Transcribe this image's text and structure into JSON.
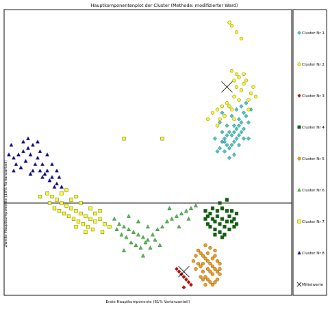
{
  "chart_data": {
    "type": "scatter",
    "title": "Hauptkomponentenplot der Cluster (Methode: modifizierter Ward)",
    "xlabel": "Erste Hauptkomponente (61% Varianzanteil)",
    "ylabel": "Zweite Hauptkomponente (19% Varianzanteil)",
    "axes_units": "principal component scores (no tick labels shown)",
    "xlim": [
      -5,
      7
    ],
    "ylim": [
      -3.5,
      6
    ],
    "zero_line": "horizontal at y = 0",
    "legend_position": "right",
    "series": [
      {
        "name": "Cluster Nr 1",
        "marker": "diamond",
        "color": "#33cccc",
        "points": [
          [
            4.0,
            1.7
          ],
          [
            4.1,
            1.9
          ],
          [
            4.2,
            2.0
          ],
          [
            4.3,
            1.8
          ],
          [
            4.4,
            2.2
          ],
          [
            4.5,
            2.1
          ],
          [
            4.6,
            2.4
          ],
          [
            4.7,
            2.3
          ],
          [
            4.8,
            2.6
          ],
          [
            4.9,
            2.5
          ],
          [
            5.0,
            2.8
          ],
          [
            5.1,
            2.7
          ],
          [
            4.2,
            1.6
          ],
          [
            4.4,
            1.7
          ],
          [
            4.6,
            1.9
          ],
          [
            4.8,
            2.1
          ],
          [
            5.0,
            2.3
          ],
          [
            5.2,
            2.5
          ],
          [
            5.3,
            2.9
          ],
          [
            4.5,
            2.7
          ],
          [
            4.7,
            2.9
          ],
          [
            4.3,
            2.4
          ],
          [
            4.1,
            2.2
          ],
          [
            4.9,
            3.0
          ],
          [
            5.1,
            3.1
          ],
          [
            4.6,
            1.5
          ],
          [
            4.4,
            1.4
          ],
          [
            4.0,
            2.5
          ],
          [
            4.8,
            1.8
          ],
          [
            5.2,
            2.0
          ],
          [
            4.7,
            2.0
          ],
          [
            4.5,
            1.8
          ],
          [
            4.3,
            2.1
          ],
          [
            4.9,
            2.2
          ],
          [
            5.0,
            2.0
          ],
          [
            4.6,
            2.2
          ],
          [
            4.2,
            1.9
          ],
          [
            4.8,
            2.4
          ],
          [
            3.8,
            2.0
          ],
          [
            3.9,
            1.6
          ],
          [
            4.4,
            3.0
          ],
          [
            4.1,
            2.8
          ]
        ]
      },
      {
        "name": "Cluster Nr 2",
        "marker": "circle",
        "color": "#ffff00",
        "points": [
          [
            4.4,
            5.6
          ],
          [
            4.5,
            5.5
          ],
          [
            4.7,
            5.3
          ],
          [
            4.9,
            5.1
          ],
          [
            4.6,
            3.8
          ],
          [
            4.7,
            3.6
          ],
          [
            4.8,
            3.9
          ],
          [
            4.9,
            3.5
          ],
          [
            5.0,
            3.7
          ],
          [
            5.1,
            3.8
          ],
          [
            5.3,
            3.4
          ],
          [
            5.4,
            3.6
          ],
          [
            5.5,
            3.3
          ],
          [
            5.2,
            3.2
          ],
          [
            4.8,
            3.2
          ],
          [
            4.6,
            3.3
          ],
          [
            4.4,
            3.0
          ],
          [
            4.3,
            3.1
          ],
          [
            4.5,
            2.9
          ],
          [
            4.1,
            3.0
          ],
          [
            3.9,
            2.9
          ],
          [
            3.7,
            2.8
          ],
          [
            3.5,
            2.6
          ],
          [
            4.2,
            2.7
          ],
          [
            4.0,
            2.6
          ],
          [
            4.7,
            4.0
          ],
          [
            4.5,
            4.1
          ],
          [
            5.0,
            4.0
          ],
          [
            4.6,
            2.6
          ],
          [
            3.9,
            2.4
          ],
          [
            5.2,
            2.9
          ]
        ]
      },
      {
        "name": "Cluster Nr 3",
        "marker": "diamond",
        "color": "#cc0000",
        "points": [
          [
            2.3,
            -2.6
          ],
          [
            2.4,
            -2.7
          ],
          [
            2.5,
            -2.8
          ],
          [
            2.6,
            -2.9
          ],
          [
            2.7,
            -3.0
          ],
          [
            2.2,
            -2.5
          ],
          [
            2.8,
            -3.1
          ],
          [
            2.5,
            -3.2
          ]
        ]
      },
      {
        "name": "Cluster Nr 4",
        "marker": "square",
        "color": "#006600",
        "points": [
          [
            3.4,
            -0.3
          ],
          [
            3.5,
            -0.5
          ],
          [
            3.6,
            -0.4
          ],
          [
            3.7,
            -0.6
          ],
          [
            3.8,
            -0.7
          ],
          [
            3.9,
            -0.5
          ],
          [
            4.0,
            -0.8
          ],
          [
            4.1,
            -0.6
          ],
          [
            4.2,
            -0.9
          ],
          [
            4.3,
            -0.7
          ],
          [
            4.4,
            -0.5
          ],
          [
            4.5,
            -0.3
          ],
          [
            4.6,
            -0.6
          ],
          [
            4.7,
            -0.4
          ],
          [
            3.6,
            -0.9
          ],
          [
            3.8,
            -1.0
          ],
          [
            4.0,
            -1.1
          ],
          [
            4.2,
            -1.2
          ],
          [
            4.4,
            -1.0
          ],
          [
            4.6,
            -0.9
          ],
          [
            3.5,
            -0.8
          ],
          [
            3.7,
            -0.2
          ],
          [
            3.9,
            -0.3
          ],
          [
            4.1,
            -0.2
          ],
          [
            4.3,
            -0.3
          ],
          [
            4.5,
            -0.7
          ],
          [
            4.7,
            -0.8
          ],
          [
            3.4,
            -0.6
          ],
          [
            4.0,
            0.0
          ],
          [
            4.3,
            0.1
          ],
          [
            3.8,
            -1.2
          ],
          [
            4.1,
            -1.3
          ]
        ]
      },
      {
        "name": "Cluster Nr 5",
        "marker": "circle",
        "color": "#ff9900",
        "points": [
          [
            3.1,
            -1.8
          ],
          [
            3.2,
            -1.9
          ],
          [
            3.3,
            -2.0
          ],
          [
            3.4,
            -2.1
          ],
          [
            3.5,
            -2.2
          ],
          [
            3.6,
            -2.3
          ],
          [
            3.7,
            -2.4
          ],
          [
            3.8,
            -2.5
          ],
          [
            3.9,
            -2.6
          ],
          [
            4.0,
            -2.7
          ],
          [
            3.2,
            -2.4
          ],
          [
            3.3,
            -2.6
          ],
          [
            3.4,
            -2.8
          ],
          [
            3.5,
            -2.9
          ],
          [
            3.6,
            -3.0
          ],
          [
            3.7,
            -3.1
          ],
          [
            3.8,
            -2.0
          ],
          [
            3.9,
            -2.2
          ],
          [
            4.0,
            -2.3
          ],
          [
            3.1,
            -2.3
          ],
          [
            3.0,
            -2.5
          ],
          [
            3.3,
            -2.3
          ],
          [
            3.5,
            -2.5
          ],
          [
            3.7,
            -2.7
          ],
          [
            3.9,
            -2.9
          ],
          [
            3.6,
            -1.7
          ],
          [
            3.4,
            -1.6
          ],
          [
            3.8,
            -1.8
          ],
          [
            3.2,
            -2.8
          ],
          [
            3.4,
            -3.1
          ],
          [
            3.6,
            -2.6
          ],
          [
            3.8,
            -3.0
          ],
          [
            4.0,
            -2.5
          ],
          [
            3.0,
            -2.0
          ],
          [
            2.9,
            -2.2
          ],
          [
            3.5,
            -1.9
          ],
          [
            3.7,
            -2.1
          ],
          [
            3.3,
            -2.9
          ]
        ]
      },
      {
        "name": "Cluster Nr 6",
        "marker": "triangle",
        "color": "#33cc33",
        "points": [
          [
            -0.4,
            -0.6
          ],
          [
            -0.2,
            -0.8
          ],
          [
            0.0,
            -0.9
          ],
          [
            0.2,
            -1.0
          ],
          [
            0.4,
            -1.1
          ],
          [
            0.6,
            -1.2
          ],
          [
            0.8,
            -1.3
          ],
          [
            1.0,
            -1.4
          ],
          [
            1.2,
            -1.2
          ],
          [
            1.4,
            -1.0
          ],
          [
            1.6,
            -0.9
          ],
          [
            1.8,
            -0.7
          ],
          [
            2.0,
            -0.6
          ],
          [
            2.2,
            -0.5
          ],
          [
            2.4,
            -0.4
          ],
          [
            2.6,
            -0.3
          ],
          [
            2.8,
            -0.2
          ],
          [
            3.0,
            -0.1
          ],
          [
            -0.3,
            -1.0
          ],
          [
            -0.1,
            -1.2
          ],
          [
            0.1,
            -1.3
          ],
          [
            0.3,
            -1.5
          ],
          [
            0.5,
            -1.6
          ],
          [
            0.7,
            -1.7
          ],
          [
            0.9,
            -1.5
          ],
          [
            1.1,
            -1.7
          ],
          [
            1.3,
            -1.4
          ],
          [
            0.2,
            -0.5
          ],
          [
            0.6,
            -0.7
          ],
          [
            1.0,
            -0.9
          ],
          [
            1.5,
            -1.6
          ],
          [
            0.0,
            -1.8
          ],
          [
            0.8,
            -2.0
          ],
          [
            1.9,
            -0.2
          ],
          [
            2.3,
            -0.9
          ],
          [
            2.7,
            -0.6
          ]
        ]
      },
      {
        "name": "Cluster Nr 7",
        "marker": "square",
        "color": "#ffff00",
        "points": [
          [
            -3.2,
            0.3
          ],
          [
            -3.0,
            0.2
          ],
          [
            -2.8,
            0.1
          ],
          [
            -2.6,
            0.0
          ],
          [
            -2.4,
            -0.1
          ],
          [
            -2.2,
            -0.2
          ],
          [
            -2.0,
            -0.3
          ],
          [
            -1.8,
            -0.4
          ],
          [
            -1.6,
            -0.5
          ],
          [
            -1.4,
            -0.6
          ],
          [
            -1.2,
            -0.7
          ],
          [
            -1.0,
            -0.6
          ],
          [
            -0.8,
            -0.8
          ],
          [
            -0.6,
            -0.9
          ],
          [
            -3.1,
            0.0
          ],
          [
            -2.9,
            -0.2
          ],
          [
            -2.7,
            -0.3
          ],
          [
            -2.5,
            -0.4
          ],
          [
            -2.3,
            -0.5
          ],
          [
            -2.1,
            -0.6
          ],
          [
            -1.9,
            -0.7
          ],
          [
            -1.7,
            -0.8
          ],
          [
            -1.5,
            -0.9
          ],
          [
            -1.3,
            -1.0
          ],
          [
            -2.6,
            0.3
          ],
          [
            -2.2,
            0.1
          ],
          [
            -1.8,
            0.0
          ],
          [
            -1.4,
            -0.2
          ],
          [
            -1.0,
            -0.3
          ],
          [
            -2.0,
            -0.9
          ],
          [
            -1.6,
            -1.1
          ],
          [
            -3.5,
            0.2
          ],
          [
            -0.9,
            -1.1
          ],
          [
            -2.4,
            0.4
          ],
          [
            -2.0,
            0.2
          ],
          [
            -1.2,
            -0.4
          ],
          [
            0.0,
            2.0
          ],
          [
            1.6,
            2.0
          ]
        ]
      },
      {
        "name": "Cluster Nr 8",
        "marker": "triangle",
        "color": "#000099",
        "points": [
          [
            -4.6,
            1.4
          ],
          [
            -4.4,
            1.5
          ],
          [
            -4.2,
            1.6
          ],
          [
            -4.0,
            1.7
          ],
          [
            -3.8,
            1.8
          ],
          [
            -3.6,
            1.4
          ],
          [
            -3.4,
            1.2
          ],
          [
            -3.2,
            1.0
          ],
          [
            -3.0,
            0.8
          ],
          [
            -2.8,
            0.6
          ],
          [
            -2.6,
            0.5
          ],
          [
            -4.5,
            1.2
          ],
          [
            -4.3,
            1.1
          ],
          [
            -4.1,
            1.3
          ],
          [
            -3.9,
            1.5
          ],
          [
            -3.7,
            1.2
          ],
          [
            -3.5,
            1.0
          ],
          [
            -3.3,
            0.9
          ],
          [
            -3.1,
            0.7
          ],
          [
            -2.9,
            0.5
          ],
          [
            -4.8,
            1.5
          ],
          [
            -4.0,
            2.0
          ],
          [
            -3.6,
            1.9
          ],
          [
            -3.2,
            1.5
          ],
          [
            -3.8,
            1.0
          ],
          [
            -4.2,
            1.9
          ],
          [
            -3.4,
            0.8
          ],
          [
            -2.7,
            0.8
          ],
          [
            -3.0,
            1.2
          ],
          [
            -4.6,
            1.0
          ],
          [
            -3.9,
            0.9
          ],
          [
            -3.5,
            1.6
          ],
          [
            -2.8,
            1.0
          ],
          [
            -4.7,
            1.8
          ]
        ]
      }
    ],
    "centroids": [
      {
        "name": "Mittelwerte",
        "marker": "cross",
        "x": 4.3,
        "y": 3.6
      },
      {
        "name": "Mittelwerte",
        "marker": "cross",
        "x": 2.5,
        "y": -2.6
      }
    ]
  },
  "legend": [
    {
      "label": "Cluster Nr 1",
      "color": "#33cccc",
      "marker": "diamond"
    },
    {
      "label": "Cluster Nr 2",
      "color": "#ffff00",
      "marker": "circle"
    },
    {
      "label": "Cluster Nr 3",
      "color": "#cc0000",
      "marker": "diamond"
    },
    {
      "label": "Cluster Nr 4",
      "color": "#006600",
      "marker": "square"
    },
    {
      "label": "Cluster Nr 5",
      "color": "#ff9900",
      "marker": "circle"
    },
    {
      "label": "Cluster Nr 6",
      "color": "#33cc33",
      "marker": "triangle"
    },
    {
      "label": "Cluster Nr 7",
      "color": "#ffff00",
      "marker": "square"
    },
    {
      "label": "Cluster Nr 8",
      "color": "#000099",
      "marker": "triangle"
    },
    {
      "label": "Mittelwerte",
      "color": "#000000",
      "marker": "cross"
    }
  ]
}
